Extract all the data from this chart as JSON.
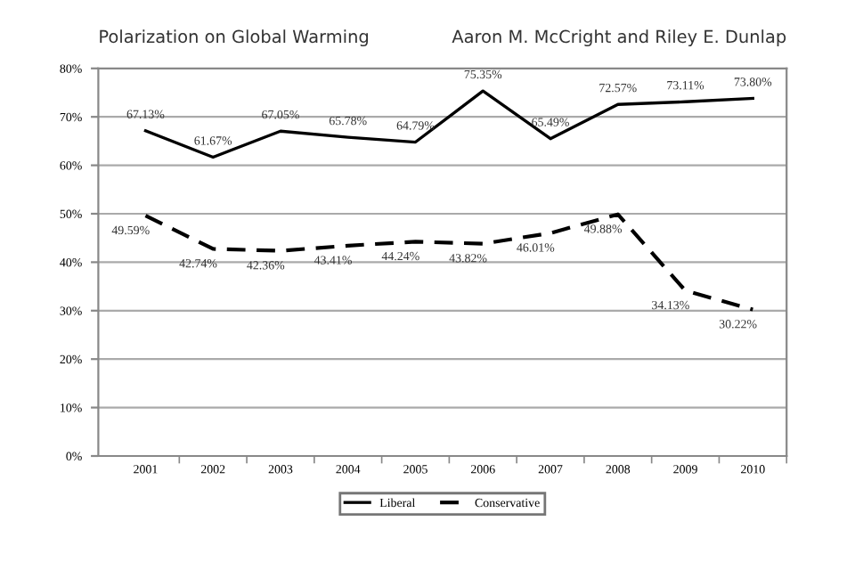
{
  "chart_data": {
    "type": "line",
    "title": "Polarization on Global Warming",
    "annotations": [
      "Aaron M. McCright and Riley E. Dunlap"
    ],
    "categories": [
      "2001",
      "2002",
      "2003",
      "2004",
      "2005",
      "2006",
      "2007",
      "2008",
      "2009",
      "2010"
    ],
    "series": [
      {
        "name": "Liberal",
        "color": "#000000",
        "line_style": "solid",
        "values": [
          67.13,
          61.67,
          67.05,
          65.78,
          64.79,
          75.35,
          65.49,
          72.57,
          73.11,
          73.8
        ],
        "value_labels": [
          "67.13%",
          "61.67%",
          "67.05%",
          "65.78%",
          "64.79%",
          "75.35%",
          "65.49%",
          "72.57%",
          "73.11%",
          "73.80%"
        ]
      },
      {
        "name": "Conservative",
        "color": "#000000",
        "line_style": "dashed",
        "values": [
          49.59,
          42.74,
          42.36,
          43.41,
          44.24,
          43.82,
          46.01,
          49.88,
          34.13,
          30.22
        ],
        "value_labels": [
          "49.59%",
          "42.74%",
          "42.36%",
          "43.41%",
          "44.24%",
          "43.82%",
          "46.01%",
          "49.88%",
          "34.13%",
          "30.22%"
        ]
      }
    ],
    "ylim": [
      0,
      80
    ],
    "yticks": [
      {
        "value": 0,
        "label": "0%"
      },
      {
        "value": 10,
        "label": "10%"
      },
      {
        "value": 20,
        "label": "20%"
      },
      {
        "value": 30,
        "label": "30%"
      },
      {
        "value": 40,
        "label": "40%"
      },
      {
        "value": 50,
        "label": "50%"
      },
      {
        "value": 60,
        "label": "60%"
      },
      {
        "value": 70,
        "label": "70%"
      },
      {
        "value": 80,
        "label": "80%"
      }
    ],
    "grid": "y",
    "legend": "bottom",
    "marker": "none"
  }
}
